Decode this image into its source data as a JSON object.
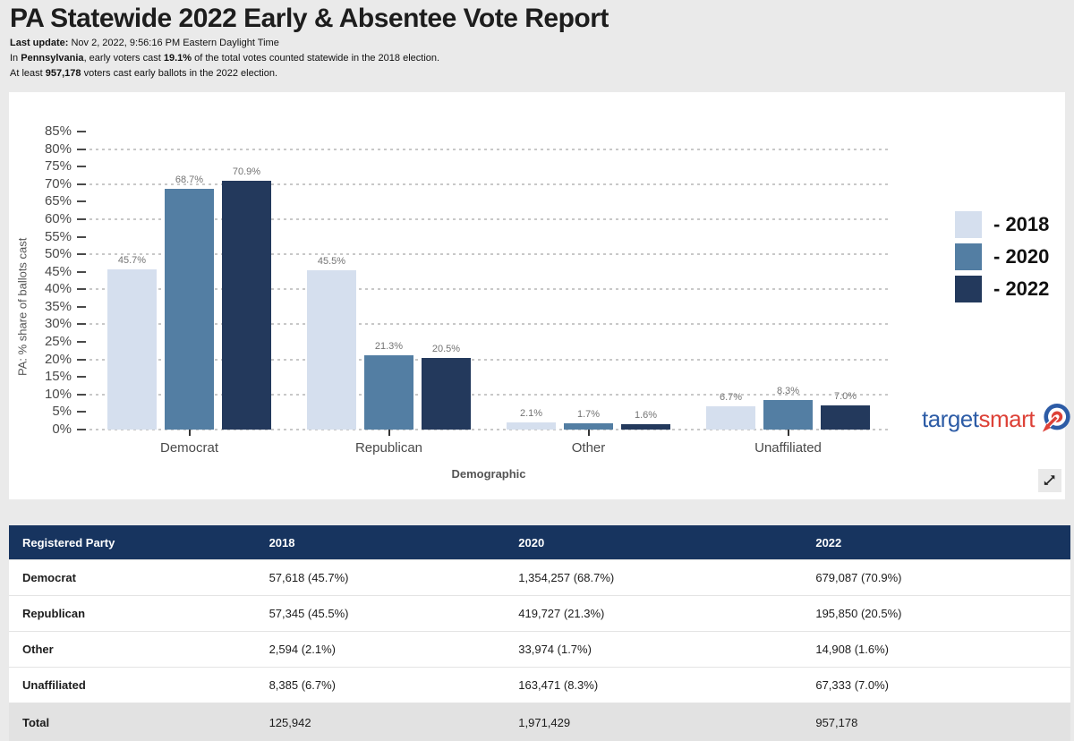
{
  "header": {
    "title": "PA Statewide 2022 Early & Absentee Vote Report",
    "last_update": {
      "label": "Last update:",
      "value": " Nov 2, 2022, 9:56:16 PM Eastern Daylight Time"
    },
    "summary1": {
      "p1": "In ",
      "b1": "Pennsylvania",
      "p2": ", early voters cast ",
      "b2": "19.1%",
      "p3": " of the total votes counted statewide in the 2018 election."
    },
    "summary2": {
      "p1": "At least ",
      "b1": "957,178",
      "p2": " voters cast early ballots in the 2022 election."
    }
  },
  "chart_data": {
    "type": "bar",
    "title": "",
    "categories": [
      "Democrat",
      "Republican",
      "Other",
      "Unaffiliated"
    ],
    "series": [
      {
        "name": "2018",
        "color": "#d5dfee",
        "values": [
          45.7,
          45.5,
          2.1,
          6.7
        ]
      },
      {
        "name": "2020",
        "color": "#537ea3",
        "values": [
          68.7,
          21.3,
          1.7,
          8.3
        ]
      },
      {
        "name": "2022",
        "color": "#23395c",
        "values": [
          70.9,
          20.5,
          1.6,
          7.0
        ]
      }
    ],
    "xlabel": "Demographic",
    "ylabel": "PA: % share of ballots cast",
    "ylim": [
      0,
      85
    ],
    "ytick_step": 5,
    "gridline_step": 10,
    "grid": true,
    "legend_position": "right",
    "legend_prefix": "- ",
    "value_suffix": "%"
  },
  "logo": {
    "text_blue": "target",
    "text_red": "smart",
    "blue": "#2d5ca6",
    "red": "#dd4137"
  },
  "icons": {
    "expand": "expand-diagonal-arrows-icon",
    "target": "bullseye-arrow-icon"
  },
  "table": {
    "columns": [
      "Registered Party",
      "2018",
      "2020",
      "2022"
    ],
    "rows": [
      {
        "label": "Democrat",
        "values": [
          "57,618 (45.7%)",
          "1,354,257 (68.7%)",
          "679,087 (70.9%)"
        ],
        "is_total": false
      },
      {
        "label": "Republican",
        "values": [
          "57,345 (45.5%)",
          "419,727 (21.3%)",
          "195,850 (20.5%)"
        ],
        "is_total": false
      },
      {
        "label": "Other",
        "values": [
          "2,594 (2.1%)",
          "33,974 (1.7%)",
          "14,908 (1.6%)"
        ],
        "is_total": false
      },
      {
        "label": "Unaffiliated",
        "values": [
          "8,385 (6.7%)",
          "163,471 (8.3%)",
          "67,333 (7.0%)"
        ],
        "is_total": false
      },
      {
        "label": "Total",
        "values": [
          "125,942",
          "1,971,429",
          "957,178"
        ],
        "is_total": true
      }
    ]
  }
}
